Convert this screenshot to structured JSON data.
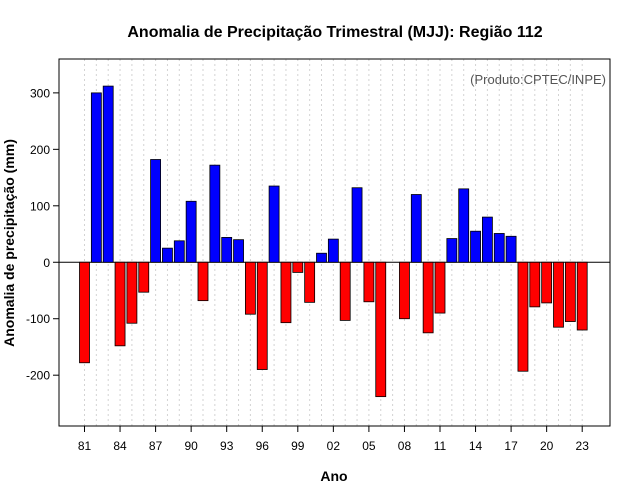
{
  "chart_data": {
    "type": "bar",
    "title": "Anomalia de Precipitação Trimestral (MJJ): Região 112",
    "xlabel": "Ano",
    "ylabel": "Anomalia de precipitação (mm)",
    "credit": "(Produto:CPTEC/INPE)",
    "ylim": [
      -290,
      360
    ],
    "yticks": [
      -200,
      -100,
      0,
      100,
      200,
      300
    ],
    "ytick_labels": [
      "-200",
      "-100",
      "0",
      "100",
      "200",
      "300"
    ],
    "xtick_labels": [
      "81",
      "84",
      "87",
      "90",
      "93",
      "96",
      "99",
      "02",
      "05",
      "08",
      "11",
      "14",
      "17",
      "20",
      "23"
    ],
    "xtick_years": [
      1981,
      1984,
      1987,
      1990,
      1993,
      1996,
      1999,
      2002,
      2005,
      2008,
      2011,
      2014,
      2017,
      2020,
      2023
    ],
    "grid": true,
    "colors": {
      "positive": "#0000ff",
      "negative": "#ff0000",
      "frame": "#000000",
      "grid": "#d3d3d3"
    },
    "categories": [
      1981,
      1982,
      1983,
      1984,
      1985,
      1986,
      1987,
      1988,
      1989,
      1990,
      1991,
      1992,
      1993,
      1994,
      1995,
      1996,
      1997,
      1998,
      1999,
      2000,
      2001,
      2002,
      2003,
      2004,
      2005,
      2006,
      2007,
      2008,
      2009,
      2010,
      2011,
      2012,
      2013,
      2014,
      2015,
      2016,
      2017,
      2018,
      2019,
      2020,
      2021,
      2022,
      2023
    ],
    "values": [
      -178,
      300,
      312,
      -148,
      -108,
      -53,
      182,
      25,
      38,
      108,
      -68,
      172,
      44,
      40,
      -92,
      -190,
      135,
      -107,
      -18,
      -71,
      16,
      41,
      -103,
      132,
      -70,
      -238,
      0,
      -100,
      120,
      -125,
      -90,
      42,
      130,
      55,
      80,
      51,
      46,
      -193,
      -79,
      -72,
      -115,
      -105,
      -120
    ]
  }
}
